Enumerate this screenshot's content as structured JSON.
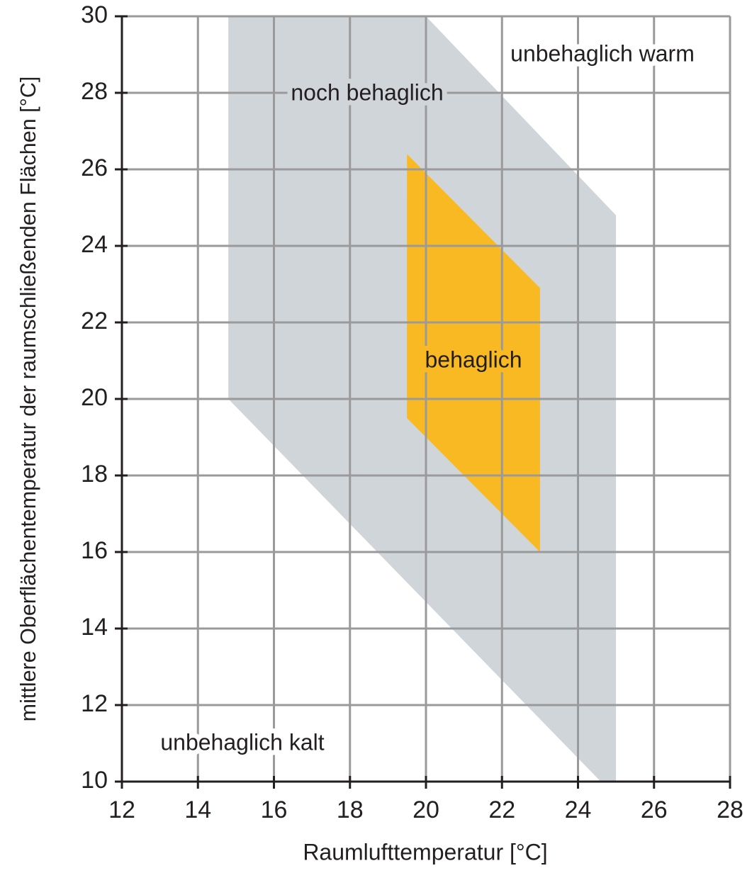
{
  "chart_data": {
    "type": "polygon",
    "xlabel": "Raumlufttemperatur [°C]",
    "ylabel": "mittlere Oberflächentemperatur der raumschließenden Flächen [°C]",
    "xlim": [
      12,
      28
    ],
    "xticks": [
      12,
      14,
      16,
      18,
      20,
      22,
      24,
      26,
      28
    ],
    "ylim": [
      10,
      30
    ],
    "yticks": [
      10,
      12,
      14,
      16,
      18,
      20,
      22,
      24,
      26,
      28,
      30
    ],
    "grid": true,
    "series": [
      {
        "name": "noch behaglich",
        "color": "#d0d5d9",
        "x": [
          14.8,
          20,
          25,
          25,
          24.6,
          14.8
        ],
        "values": [
          30,
          30,
          24.8,
          10,
          10,
          20
        ]
      },
      {
        "name": "behaglich",
        "color": "#f9b923",
        "x": [
          19.5,
          23,
          23,
          19.5
        ],
        "values": [
          26.4,
          22.9,
          16,
          19.5
        ]
      }
    ],
    "annotations": [
      "unbehaglich warm",
      "unbehaglich kalt"
    ]
  }
}
